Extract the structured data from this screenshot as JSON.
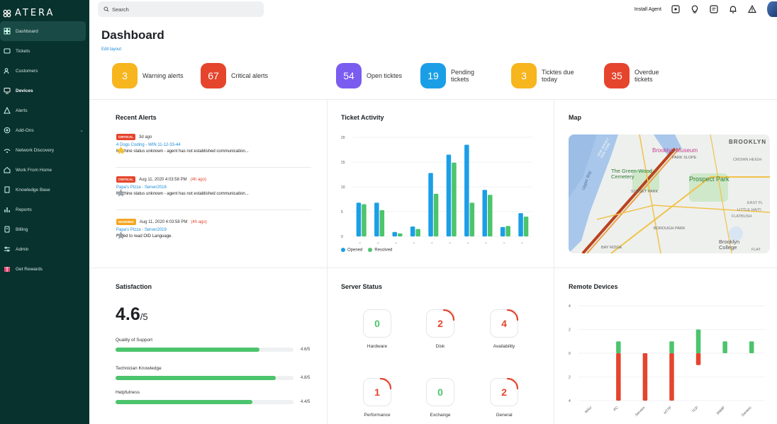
{
  "brand": {
    "name": "ATERA"
  },
  "sidebar": {
    "items": [
      {
        "label": "Dashboard",
        "icon": "dashboard-icon",
        "active": true
      },
      {
        "label": "Tickets",
        "icon": "ticket-icon"
      },
      {
        "label": "Customers",
        "icon": "customers-icon"
      },
      {
        "label": "Devices",
        "icon": "devices-icon",
        "bold": true
      },
      {
        "label": "Alerts",
        "icon": "alert-icon"
      },
      {
        "label": "Add-Ons",
        "icon": "addons-icon",
        "chevron": true
      },
      {
        "label": "Network Discovery",
        "icon": "network-icon"
      },
      {
        "label": "Work From Home",
        "icon": "home-icon"
      },
      {
        "label": "Knowledge Base",
        "icon": "book-icon"
      },
      {
        "label": "Reports",
        "icon": "reports-icon"
      },
      {
        "label": "Billing",
        "icon": "billing-icon"
      },
      {
        "label": "Admin",
        "icon": "admin-icon"
      },
      {
        "label": "Get Rewards",
        "icon": "gift-icon"
      }
    ]
  },
  "topbar": {
    "search_placeholder": "Search",
    "install_agent": "Install Agent"
  },
  "header": {
    "title": "Dashboard",
    "edit_layout": "Edit layout"
  },
  "kpis": [
    {
      "value": "3",
      "label": "Warning alerts",
      "color": "#f7b51e"
    },
    {
      "value": "67",
      "label": "Critical alerts",
      "color": "#e5452d"
    },
    {
      "value": "54",
      "label": "Open ticktes",
      "color": "#7b5cf0"
    },
    {
      "value": "19",
      "label": "Pending tickets",
      "color": "#1a9fe6"
    },
    {
      "value": "3",
      "label": "Ticktes due today",
      "color": "#f7b51e"
    },
    {
      "value": "35",
      "label": "Overdue tickets",
      "color": "#e5452d"
    }
  ],
  "recent_alerts": {
    "title": "Recent Alerts",
    "items": [
      {
        "severity": "CRITICAL",
        "time": "3d ago",
        "ago": "",
        "device": "4 Dogs Coding - WIN 11-12-33-44",
        "message": "Machine status unknown - agent has not established communication..."
      },
      {
        "severity": "CRITICAL",
        "time": "Aug 11, 2020 4:03:58 PM",
        "ago": "(4h ago)",
        "device": "Papa's Pizza - Server2016",
        "message": "Machine status unknown - agent has not established communication..."
      },
      {
        "severity": "WARNING",
        "time": "Aug 11, 2020 4:03:58 PM",
        "ago": "(4h ago)",
        "device": "Papa's Pizza - Server2019",
        "message": "Failed to read OID Language."
      }
    ]
  },
  "ticket_activity": {
    "title": "Ticket Activity",
    "legend_opened": "Opened",
    "legend_resolved": "Resolved",
    "colors": {
      "opened": "#1a9fe6",
      "resolved": "#4cc46c"
    }
  },
  "map": {
    "title": "Map",
    "labels": [
      "BROOKLYN",
      "Brooklyn Museum",
      "PARK SLOPE",
      "CROWN HEIGH",
      "The Green-Wood Cemetery",
      "Prospect Park",
      "SUNSET PARK",
      "LITTLE HAITI",
      "FLATBUSH",
      "BOROUGH PARK",
      "Brooklyn College",
      "FLAT",
      "EAST FL",
      "BAY RIDGE",
      "Upper Bay",
      "NEW JERSEY NEW YORK"
    ]
  },
  "satisfaction": {
    "title": "Satisfaction",
    "score": "4.6",
    "out_of": "/5",
    "items": [
      {
        "label": "Quality of Support",
        "value": "4.6/5",
        "fraction": 0.81
      },
      {
        "label": "Technician Knowledge",
        "value": "4.8/5",
        "fraction": 0.9
      },
      {
        "label": "Helpfulness",
        "value": "4.4/5",
        "fraction": 0.77
      }
    ]
  },
  "server_status": {
    "title": "Server Status",
    "items": [
      {
        "label": "Hardware",
        "value": "0",
        "color": "#4cc46c",
        "arc": false
      },
      {
        "label": "Disk",
        "value": "2",
        "color": "#e5452d",
        "arc": true
      },
      {
        "label": "Availability",
        "value": "4",
        "color": "#e5452d",
        "arc": true
      },
      {
        "label": "Performance",
        "value": "1",
        "color": "#e5452d",
        "arc": true
      },
      {
        "label": "Exchange",
        "value": "0",
        "color": "#4cc46c",
        "arc": false
      },
      {
        "label": "General",
        "value": "2",
        "color": "#e5452d",
        "arc": true
      }
    ]
  },
  "remote_devices": {
    "title": "Remote Devices"
  },
  "chart_data": [
    {
      "type": "bar",
      "title": "Ticket Activity",
      "categories": [
        "11 Nov",
        "12 Nov",
        "13 Nov",
        "14 Nov",
        "15 Nov",
        "16 Nov",
        "17 Nov",
        "18 Nov",
        "19 Nov",
        "20 Nov"
      ],
      "series": [
        {
          "name": "Opened",
          "values": [
            6.8,
            6.8,
            0.9,
            2.0,
            12.8,
            16.5,
            18.5,
            9.4,
            1.9,
            4.7
          ]
        },
        {
          "name": "Resolved",
          "values": [
            6.5,
            5.3,
            0.6,
            1.5,
            8.6,
            14.9,
            6.8,
            8.4,
            2.1,
            4.0
          ]
        }
      ],
      "yticks": [
        0,
        5,
        10,
        15,
        20
      ],
      "ylim": [
        0,
        20
      ]
    },
    {
      "type": "bar",
      "title": "Remote Devices",
      "categories": [
        "MAU",
        "PC",
        "Servers",
        "HTTP",
        "TCP",
        "SNMP",
        "Generic"
      ],
      "series": [
        {
          "name": "green",
          "color": "#4cc46c",
          "values": [
            0,
            1,
            0,
            1,
            2,
            1,
            1
          ]
        },
        {
          "name": "red",
          "color": "#e5452d",
          "values": [
            0,
            -4,
            -4,
            -4,
            -1,
            0,
            0
          ]
        }
      ],
      "yticks": [
        4,
        2,
        0,
        2,
        4
      ],
      "ylim": [
        -4,
        4
      ]
    }
  ]
}
